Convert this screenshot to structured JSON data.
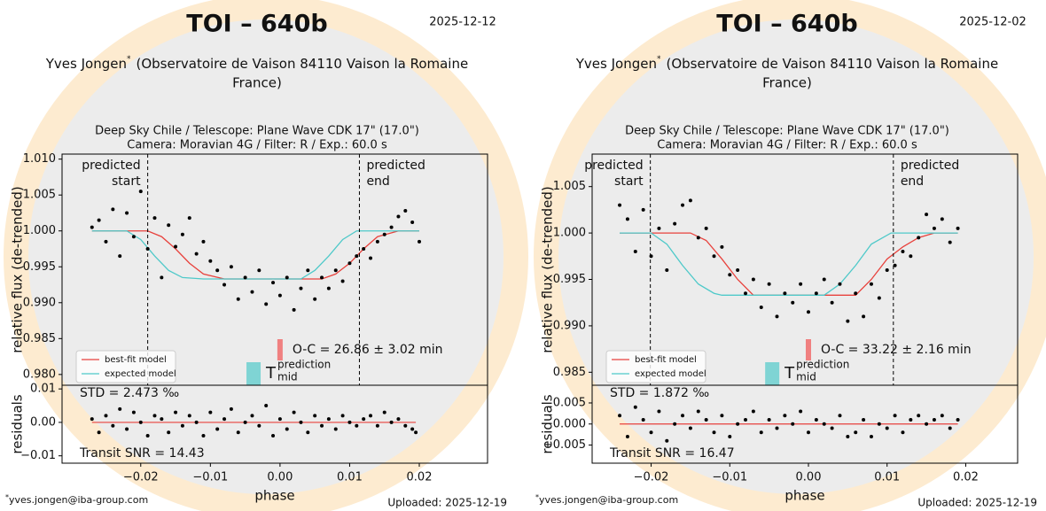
{
  "chart_data": [
    {
      "type": "scatter",
      "title": "TOI – 640b",
      "date": "2025-12-12",
      "observer": "Yves Jongen",
      "observer_mark": "*",
      "observatory": [
        "(Observatoire de Vaison 84110 Vaison la Romaine",
        "France)"
      ],
      "subtitle": [
        "Deep Sky Chile / Telescope: Plane Wave CDK 17\" (17.0\")",
        "Camera: Moravian 4G / Filter: R / Exp.: 60.0 s"
      ],
      "email": "yves.jongen@iba-group.com",
      "uploaded": "Uploaded: 2025-12-19",
      "ylabel": "relative flux (de-trended)",
      "xlim": [
        -0.0313,
        0.0298
      ],
      "ylim": [
        0.9785,
        1.0107
      ],
      "yticks": [
        {
          "value": 0.98,
          "label": "0.980"
        },
        0.985,
        {
          "value": 0.99,
          "label": "0.990"
        },
        0.995,
        {
          "value": 1.0,
          "label": "1.000"
        },
        1.005,
        {
          "value": 1.01,
          "label": "1.010"
        }
      ],
      "point_color": "#000000",
      "x": [
        -0.027,
        -0.026,
        -0.025,
        -0.024,
        -0.023,
        -0.022,
        -0.021,
        -0.02,
        -0.019,
        -0.018,
        -0.017,
        -0.016,
        -0.015,
        -0.014,
        -0.013,
        -0.012,
        -0.011,
        -0.01,
        -0.009,
        -0.008,
        -0.007,
        -0.006,
        -0.005,
        -0.004,
        -0.003,
        -0.002,
        -0.001,
        0.0,
        0.001,
        0.002,
        0.003,
        0.004,
        0.005,
        0.006,
        0.007,
        0.008,
        0.009,
        0.01,
        0.011,
        0.012,
        0.013,
        0.014,
        0.015,
        0.016,
        0.017,
        0.018,
        0.019,
        0.02
      ],
      "values": [
        1.0005,
        1.0015,
        0.9985,
        1.003,
        0.9965,
        1.0025,
        0.9992,
        1.0055,
        0.9975,
        1.0018,
        0.9935,
        1.0008,
        0.9978,
        0.9995,
        1.0018,
        0.9968,
        0.9985,
        0.9958,
        0.9945,
        0.9925,
        0.995,
        0.9905,
        0.9935,
        0.9915,
        0.9945,
        0.9898,
        0.9928,
        0.991,
        0.9935,
        0.989,
        0.992,
        0.9945,
        0.9905,
        0.9935,
        0.992,
        0.9945,
        0.993,
        0.9955,
        0.9965,
        0.9975,
        0.9962,
        0.9985,
        0.9995,
        1.0005,
        1.002,
        1.0028,
        1.0012,
        0.9985
      ],
      "series": [
        {
          "name": "best-fit model",
          "color": "#e8413c",
          "x": [
            -0.027,
            -0.019,
            -0.017,
            -0.015,
            -0.013,
            -0.011,
            -0.008,
            0.006,
            0.008,
            0.01,
            0.012,
            0.014,
            0.017,
            0.02
          ],
          "values": [
            1.0,
            1.0,
            0.9992,
            0.9975,
            0.9955,
            0.994,
            0.9933,
            0.9933,
            0.994,
            0.9955,
            0.9975,
            0.9992,
            1.0,
            1.0
          ]
        },
        {
          "name": "expected model",
          "color": "#4ec9c9",
          "x": [
            -0.027,
            -0.022,
            -0.02,
            -0.018,
            -0.016,
            -0.014,
            -0.011,
            0.003,
            0.005,
            0.007,
            0.009,
            0.011,
            0.02
          ],
          "values": [
            1.0,
            1.0,
            0.9988,
            0.9965,
            0.9945,
            0.9935,
            0.9933,
            0.9933,
            0.9945,
            0.9965,
            0.9988,
            1.0,
            1.0
          ]
        }
      ],
      "legend": "lower left",
      "predicted_start": -0.019,
      "predicted_end": 0.0114,
      "start_label": [
        "predicted",
        "start"
      ],
      "end_label": [
        "predicted",
        "end"
      ],
      "observed_mid": 0.0,
      "oc_color": "#f08080",
      "oc_text": "O-C = 26.86 ± 3.02 min",
      "predicted_mid": -0.0038,
      "tmid_color": "#7fd4d4",
      "tmid_label": [
        "T",
        "prediction",
        "mid"
      ]
    },
    {
      "type": "scatter",
      "ylabel": "residuals",
      "xlabel": "phase",
      "xlim": [
        -0.0313,
        0.0298
      ],
      "ylim": [
        -0.0122,
        0.0111
      ],
      "xticks": [
        {
          "value": -0.02,
          "label": "−0.02"
        },
        {
          "value": -0.01,
          "label": "−0.01"
        },
        {
          "value": 0.0,
          "label": "0.00"
        },
        0.01,
        0.02
      ],
      "yticks": [
        0.01,
        {
          "value": 0.0,
          "label": "0.00"
        },
        {
          "value": -0.01,
          "label": "−0.01"
        }
      ],
      "point_color": "#000000",
      "zero_color": "#e8413c",
      "x": [
        -0.027,
        -0.026,
        -0.025,
        -0.024,
        -0.023,
        -0.022,
        -0.021,
        -0.02,
        -0.019,
        -0.018,
        -0.017,
        -0.016,
        -0.015,
        -0.014,
        -0.013,
        -0.012,
        -0.011,
        -0.01,
        -0.009,
        -0.008,
        -0.007,
        -0.006,
        -0.005,
        -0.004,
        -0.003,
        -0.002,
        -0.001,
        0.0,
        0.001,
        0.002,
        0.003,
        0.004,
        0.005,
        0.006,
        0.007,
        0.008,
        0.009,
        0.01,
        0.011,
        0.012,
        0.013,
        0.014,
        0.015,
        0.016,
        0.017,
        0.018,
        0.019,
        0.0195
      ],
      "values": [
        0.001,
        -0.003,
        0.002,
        -0.001,
        0.004,
        -0.002,
        0.003,
        0,
        -0.004,
        0.002,
        0.001,
        -0.003,
        0.003,
        -0.001,
        0.002,
        0,
        -0.004,
        0.003,
        -0.002,
        0.001,
        0.004,
        -0.003,
        0,
        0.002,
        -0.001,
        0.005,
        -0.004,
        0.001,
        -0.002,
        0.003,
        0,
        -0.003,
        0.002,
        -0.001,
        0.001,
        -0.002,
        0.002,
        0,
        -0.001,
        0.001,
        0.002,
        -0.001,
        0.003,
        0,
        0.001,
        -0.001,
        -0.002,
        -0.003
      ],
      "std_text": "STD = 2.473 ‰",
      "snr_text": "Transit SNR = 14.43"
    },
    {
      "type": "scatter",
      "title": "TOI – 640b",
      "date": "2025-12-02",
      "observer": "Yves Jongen",
      "observer_mark": "*",
      "observatory": [
        "(Observatoire de Vaison 84110 Vaison la Romaine",
        "France)"
      ],
      "subtitle": [
        "Deep Sky Chile / Telescope: Plane Wave CDK 17\" (17.0\")",
        "Camera: Moravian 4G / Filter: R / Exp.: 60.0 s"
      ],
      "email": "yves.jongen@iba-group.com",
      "uploaded": "Uploaded: 2025-12-19",
      "ylabel": "relative flux (de-trended)",
      "xlim": [
        -0.0275,
        0.0266
      ],
      "ylim": [
        0.9836,
        1.0085
      ],
      "yticks": [
        0.985,
        {
          "value": 0.99,
          "label": "0.990"
        },
        0.995,
        {
          "value": 1.0,
          "label": "1.000"
        },
        1.005
      ],
      "point_color": "#000000",
      "x": [
        -0.024,
        -0.023,
        -0.022,
        -0.021,
        -0.02,
        -0.019,
        -0.018,
        -0.017,
        -0.016,
        -0.015,
        -0.014,
        -0.013,
        -0.012,
        -0.011,
        -0.01,
        -0.009,
        -0.008,
        -0.007,
        -0.006,
        -0.005,
        -0.004,
        -0.003,
        -0.002,
        -0.001,
        0.0,
        0.001,
        0.002,
        0.003,
        0.004,
        0.005,
        0.006,
        0.007,
        0.008,
        0.009,
        0.01,
        0.011,
        0.012,
        0.013,
        0.014,
        0.015,
        0.016,
        0.017,
        0.018,
        0.019
      ],
      "values": [
        1.003,
        1.0015,
        0.998,
        1.0025,
        0.9975,
        1.0005,
        0.996,
        1.001,
        1.003,
        1.0035,
        0.9995,
        1.0005,
        0.9975,
        0.9985,
        0.9955,
        0.996,
        0.9935,
        0.995,
        0.992,
        0.9945,
        0.991,
        0.9935,
        0.9925,
        0.9945,
        0.9915,
        0.9935,
        0.995,
        0.9925,
        0.9945,
        0.9905,
        0.9935,
        0.991,
        0.9945,
        0.993,
        0.996,
        0.9965,
        0.998,
        0.9975,
        0.9995,
        1.002,
        1.0005,
        1.0015,
        0.999,
        1.0005
      ],
      "series": [
        {
          "name": "best-fit model",
          "color": "#e8413c",
          "x": [
            -0.024,
            -0.015,
            -0.013,
            -0.011,
            -0.009,
            -0.007,
            0.006,
            0.008,
            0.01,
            0.012,
            0.014,
            0.016,
            0.019
          ],
          "values": [
            1.0,
            1.0,
            0.9992,
            0.9972,
            0.995,
            0.9933,
            0.9933,
            0.995,
            0.9972,
            0.9985,
            0.9995,
            1.0,
            1.0
          ]
        },
        {
          "name": "expected model",
          "color": "#4ec9c9",
          "x": [
            -0.024,
            -0.02,
            -0.018,
            -0.016,
            -0.014,
            -0.012,
            -0.011,
            0.002,
            0.004,
            0.006,
            0.008,
            0.0105,
            0.019
          ],
          "values": [
            1.0,
            1.0,
            0.9988,
            0.9965,
            0.9945,
            0.9935,
            0.9933,
            0.9933,
            0.9945,
            0.9965,
            0.9988,
            1.0,
            1.0
          ]
        }
      ],
      "legend": "lower left",
      "predicted_start": -0.0201,
      "predicted_end": 0.0108,
      "start_label": [
        "predicted",
        "start"
      ],
      "end_label": [
        "predicted",
        "end"
      ],
      "observed_mid": 0.0,
      "oc_color": "#f08080",
      "oc_text": "O-C = 33.22 ± 2.16 min",
      "predicted_mid": -0.0046,
      "tmid_color": "#7fd4d4",
      "tmid_label": [
        "T",
        "prediction",
        "mid"
      ]
    },
    {
      "type": "scatter",
      "ylabel": "residuals",
      "xlabel": "phase",
      "xlim": [
        -0.0275,
        0.0266
      ],
      "ylim": [
        -0.0093,
        0.0092
      ],
      "xticks": [
        {
          "value": -0.02,
          "label": "−0.02"
        },
        {
          "value": -0.01,
          "label": "−0.01"
        },
        {
          "value": 0.0,
          "label": "0.00"
        },
        0.01,
        0.02
      ],
      "yticks": [
        0.005,
        {
          "value": 0.0,
          "label": "0.000"
        },
        {
          "value": -0.005,
          "label": "−0.005"
        }
      ],
      "point_color": "#000000",
      "zero_color": "#e8413c",
      "x": [
        -0.024,
        -0.023,
        -0.022,
        -0.021,
        -0.02,
        -0.019,
        -0.018,
        -0.017,
        -0.016,
        -0.015,
        -0.014,
        -0.013,
        -0.012,
        -0.011,
        -0.01,
        -0.009,
        -0.008,
        -0.007,
        -0.006,
        -0.005,
        -0.004,
        -0.003,
        -0.002,
        -0.001,
        0.0,
        0.001,
        0.002,
        0.003,
        0.004,
        0.005,
        0.006,
        0.007,
        0.008,
        0.009,
        0.01,
        0.011,
        0.012,
        0.013,
        0.014,
        0.015,
        0.016,
        0.017,
        0.018,
        0.019
      ],
      "values": [
        0.002,
        -0.003,
        0.004,
        0.001,
        -0.002,
        0.003,
        -0.004,
        0,
        0.002,
        -0.001,
        0.003,
        0.001,
        -0.002,
        0.002,
        -0.003,
        0,
        0.001,
        0.003,
        -0.002,
        0.001,
        -0.001,
        0.002,
        0,
        0.003,
        -0.002,
        0.001,
        0,
        -0.001,
        0.002,
        -0.003,
        -0.002,
        0.001,
        -0.003,
        0,
        -0.001,
        0.002,
        -0.002,
        0.001,
        0.002,
        0,
        0.001,
        0.002,
        -0.001,
        0.001
      ],
      "std_text": "STD = 1.872 ‰",
      "snr_text": "Transit SNR = 16.47"
    }
  ]
}
